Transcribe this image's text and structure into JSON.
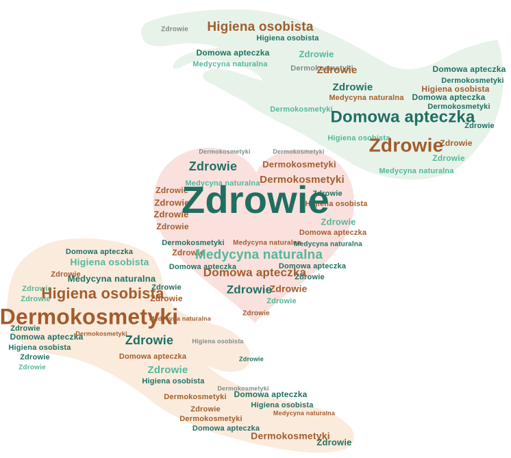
{
  "words": {
    "zdrowie": "Zdrowie",
    "domowa_apteczka": "Domowa apteczka",
    "dermokosmetyki": "Dermokosmetyki",
    "higiena_osobista": "Higiena osobista",
    "medycyna_naturalna": "Medycyna naturalna"
  },
  "colors": {
    "teal_dark": "#1f6f61",
    "teal_light": "#52b79a",
    "brown": "#a25c2d",
    "orange": "#d6894c",
    "gray": "#7e8a86",
    "green_bg": "#e7f3e9",
    "pink_bg": "#fae1de",
    "peach_bg": "#fbebdc"
  },
  "shapes": [
    "top-hand",
    "heart",
    "bottom-hand"
  ]
}
